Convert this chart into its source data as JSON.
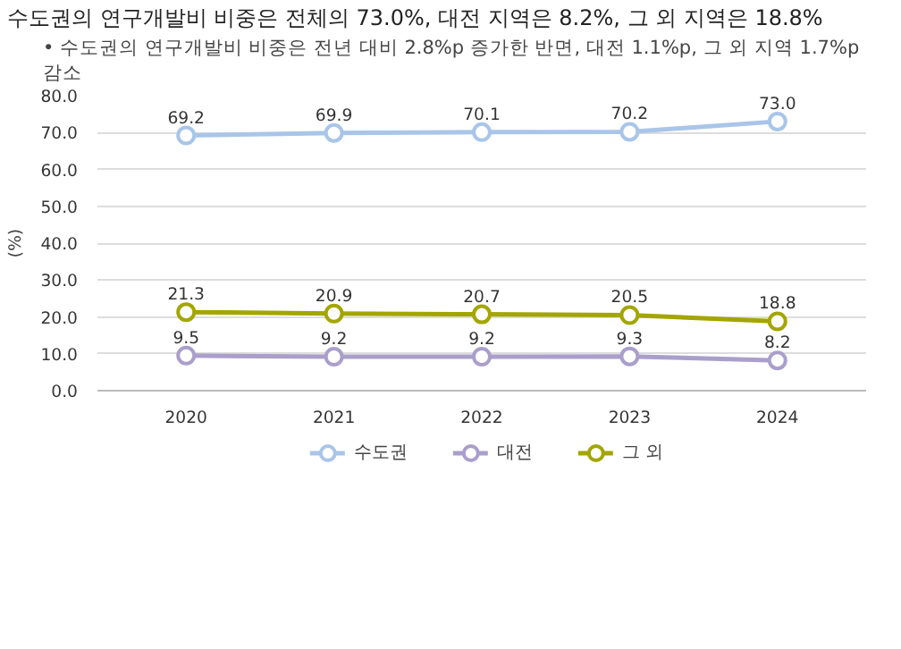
{
  "chart_data": {
    "type": "line",
    "title": "수도권의 연구개발비 비중은 전체의 73.0%, 대전 지역은 8.2%, 그 외 지역은 18.8%",
    "subtitle": "• 수도권의 연구개발비 비중은 전년 대비 2.8%p 증가한 반면, 대전 1.1%p, 그 외 지역 1.7%p 감소",
    "ylabel": "(%)",
    "categories": [
      "2020",
      "2021",
      "2022",
      "2023",
      "2024"
    ],
    "series": [
      {
        "name": "수도권",
        "color": "#a9c5e9",
        "values": [
          69.2,
          69.9,
          70.1,
          70.2,
          73.0
        ],
        "value_labels": [
          "69.2",
          "69.9",
          "70.1",
          "70.2",
          "73.0"
        ]
      },
      {
        "name": "대전",
        "color": "#aa9fcb",
        "values": [
          9.5,
          9.2,
          9.2,
          9.3,
          8.2
        ]
      },
      {
        "name": "그 외",
        "color": "#a3a500",
        "values": [
          21.3,
          20.9,
          20.7,
          20.5,
          18.8
        ]
      }
    ],
    "ylim": [
      0,
      80
    ],
    "yticks": [
      {
        "value": 0,
        "label": "0.0"
      },
      {
        "value": 10,
        "label": "10.0"
      },
      {
        "value": 20,
        "label": "20.0"
      },
      {
        "value": 30,
        "label": "30.0"
      },
      {
        "value": 40,
        "label": "40.0"
      },
      {
        "value": 50,
        "label": "50.0"
      },
      {
        "value": 60,
        "label": "60.0"
      },
      {
        "value": 70,
        "label": "70.0"
      },
      {
        "value": 80,
        "label": "80.0"
      }
    ],
    "grid": "y",
    "legend": "bottom",
    "marker": "circle",
    "line_style": "solid",
    "data_labels": true
  }
}
